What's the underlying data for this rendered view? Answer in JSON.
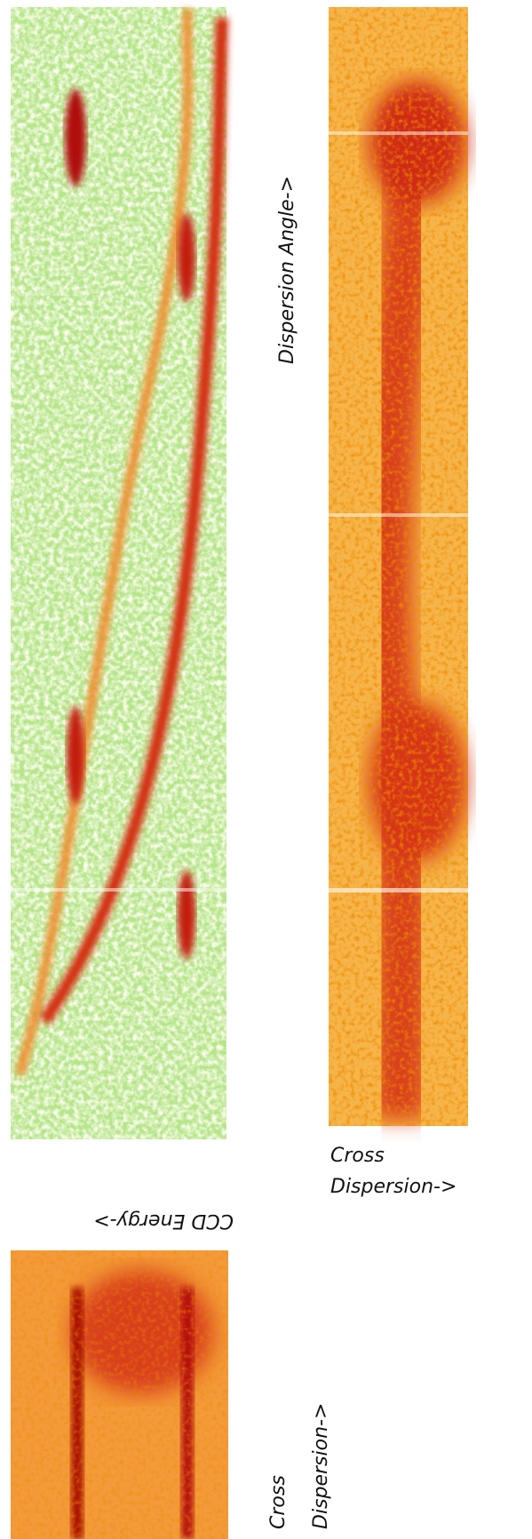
{
  "labels": {
    "dispersion_angle": "Dispersion Angle->",
    "ccd_energy": "CCD Energy->",
    "cross_right_1": "Cross",
    "cross_right_2": "Dispersion->",
    "cross_bottom_1": "Cross",
    "cross_bottom_2": "Dispersion->"
  }
}
